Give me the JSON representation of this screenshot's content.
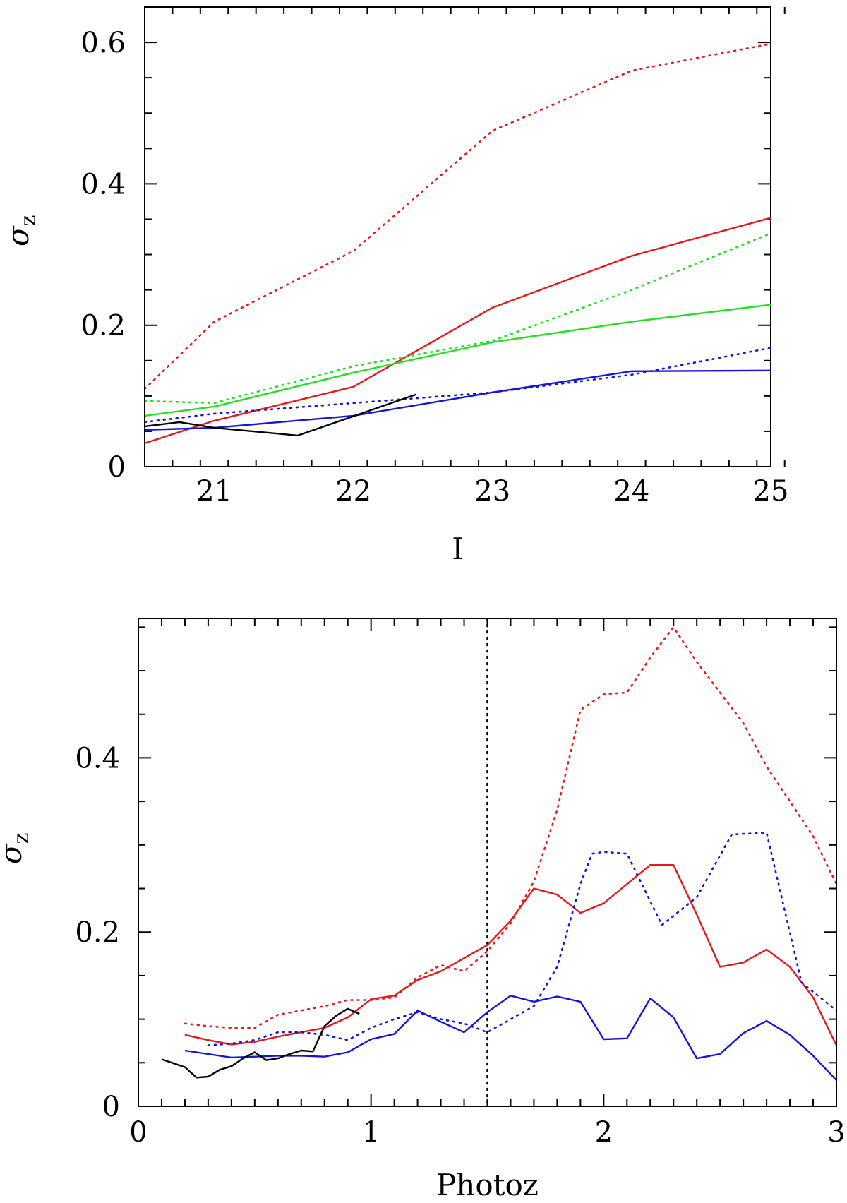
{
  "colors": {
    "red": "#e41a1c",
    "green": "#22e022",
    "blue": "#1515d8",
    "black": "#000000"
  },
  "chart_data": [
    {
      "type": "line",
      "title": "",
      "xlabel": "I",
      "ylabel": "σ",
      "ylabel_subscript": "z",
      "xlim": [
        20.5,
        25
      ],
      "ylim": [
        0,
        0.65
      ],
      "xticks": [
        21,
        22,
        23,
        24,
        25
      ],
      "xtick_labels": [
        "21",
        "22",
        "23",
        "24",
        "25"
      ],
      "xminor_step": 0.2,
      "yticks": [
        0,
        0.2,
        0.4,
        0.6
      ],
      "ytick_labels": [
        "0",
        "0.2",
        "0.4",
        "0.6"
      ],
      "yminor_step": 0.05,
      "series": [
        {
          "color": "red",
          "style": "dotted",
          "x": [
            20.5,
            21,
            22,
            23,
            24,
            25
          ],
          "y": [
            0.11,
            0.205,
            0.305,
            0.475,
            0.56,
            0.598
          ]
        },
        {
          "color": "red",
          "style": "solid",
          "x": [
            20.5,
            21,
            22,
            23,
            24,
            25
          ],
          "y": [
            0.033,
            0.065,
            0.113,
            0.225,
            0.298,
            0.352
          ]
        },
        {
          "color": "green",
          "style": "dotted",
          "x": [
            20.5,
            21,
            22,
            23,
            24,
            25
          ],
          "y": [
            0.093,
            0.09,
            0.142,
            0.178,
            0.25,
            0.33
          ]
        },
        {
          "color": "green",
          "style": "solid",
          "x": [
            20.5,
            21,
            22,
            23,
            24,
            25
          ],
          "y": [
            0.072,
            0.085,
            0.133,
            0.176,
            0.205,
            0.229
          ]
        },
        {
          "color": "blue",
          "style": "dotted",
          "x": [
            20.5,
            21,
            22,
            23,
            24,
            25
          ],
          "y": [
            0.063,
            0.075,
            0.09,
            0.105,
            0.13,
            0.168
          ]
        },
        {
          "color": "blue",
          "style": "solid",
          "x": [
            20.5,
            21,
            22,
            23,
            24,
            25
          ],
          "y": [
            0.052,
            0.055,
            0.072,
            0.105,
            0.135,
            0.136
          ]
        },
        {
          "color": "black",
          "style": "solid",
          "x": [
            20.5,
            20.75,
            21.0,
            21.6,
            22.45
          ],
          "y": [
            0.057,
            0.063,
            0.055,
            0.044,
            0.102
          ]
        }
      ]
    },
    {
      "type": "line",
      "title": "",
      "xlabel": "Photoz",
      "ylabel": "σ",
      "ylabel_subscript": "z",
      "xlim": [
        0,
        3
      ],
      "ylim": [
        0,
        0.56
      ],
      "xticks": [
        0,
        1,
        2,
        3
      ],
      "xtick_labels": [
        "0",
        "1",
        "2",
        "3"
      ],
      "xminor_step": 0.1,
      "yticks": [
        0,
        0.2,
        0.4
      ],
      "ytick_labels": [
        "0",
        "0.2",
        "0.4"
      ],
      "yminor_step": 0.05,
      "vline_x": 1.5,
      "series": [
        {
          "color": "red",
          "style": "dotted",
          "x": [
            0.2,
            0.3,
            0.4,
            0.5,
            0.6,
            0.7,
            0.8,
            0.9,
            1.0,
            1.1,
            1.2,
            1.3,
            1.4,
            1.5,
            1.6,
            1.7,
            1.8,
            1.9,
            2.0,
            2.1,
            2.2,
            2.3,
            2.4,
            2.5,
            2.6,
            2.7,
            2.8,
            2.9,
            3.0
          ],
          "y": [
            0.095,
            0.092,
            0.09,
            0.09,
            0.105,
            0.11,
            0.115,
            0.122,
            0.122,
            0.125,
            0.148,
            0.162,
            0.155,
            0.178,
            0.21,
            0.258,
            0.34,
            0.455,
            0.473,
            0.475,
            0.515,
            0.55,
            0.51,
            0.475,
            0.44,
            0.39,
            0.35,
            0.31,
            0.255
          ]
        },
        {
          "color": "red",
          "style": "solid",
          "x": [
            0.2,
            0.3,
            0.4,
            0.5,
            0.6,
            0.7,
            0.8,
            0.9,
            1.0,
            1.1,
            1.2,
            1.3,
            1.4,
            1.5,
            1.6,
            1.7,
            1.8,
            1.9,
            2.0,
            2.1,
            2.2,
            2.3,
            2.4,
            2.5,
            2.6,
            2.7,
            2.8,
            2.9,
            3.0
          ],
          "y": [
            0.082,
            0.076,
            0.071,
            0.074,
            0.08,
            0.085,
            0.09,
            0.102,
            0.123,
            0.127,
            0.145,
            0.155,
            0.17,
            0.185,
            0.213,
            0.25,
            0.243,
            0.222,
            0.233,
            0.255,
            0.277,
            0.277,
            0.22,
            0.16,
            0.165,
            0.18,
            0.16,
            0.125,
            0.07
          ]
        },
        {
          "color": "blue",
          "style": "dotted",
          "x": [
            0.3,
            0.4,
            0.5,
            0.6,
            0.7,
            0.8,
            0.9,
            1.0,
            1.1,
            1.2,
            1.3,
            1.4,
            1.5,
            1.6,
            1.7,
            1.8,
            1.9,
            1.95,
            2.0,
            2.1,
            2.25,
            2.4,
            2.55,
            2.7,
            2.85,
            3.0
          ],
          "y": [
            0.07,
            0.072,
            0.076,
            0.085,
            0.085,
            0.082,
            0.076,
            0.09,
            0.1,
            0.108,
            0.1,
            0.095,
            0.085,
            0.1,
            0.115,
            0.16,
            0.255,
            0.29,
            0.292,
            0.29,
            0.208,
            0.24,
            0.312,
            0.314,
            0.142,
            0.11
          ]
        },
        {
          "color": "blue",
          "style": "solid",
          "x": [
            0.2,
            0.3,
            0.4,
            0.5,
            0.6,
            0.7,
            0.8,
            0.9,
            1.0,
            1.1,
            1.2,
            1.3,
            1.4,
            1.5,
            1.6,
            1.7,
            1.8,
            1.9,
            2.0,
            2.1,
            2.2,
            2.3,
            2.4,
            2.5,
            2.6,
            2.7,
            2.8,
            2.9,
            3.0
          ],
          "y": [
            0.064,
            0.06,
            0.056,
            0.057,
            0.058,
            0.058,
            0.057,
            0.062,
            0.077,
            0.083,
            0.11,
            0.097,
            0.085,
            0.108,
            0.127,
            0.12,
            0.126,
            0.12,
            0.077,
            0.078,
            0.124,
            0.102,
            0.055,
            0.06,
            0.084,
            0.098,
            0.082,
            0.058,
            0.03
          ]
        },
        {
          "color": "black",
          "style": "solid",
          "x": [
            0.1,
            0.2,
            0.25,
            0.3,
            0.35,
            0.4,
            0.45,
            0.5,
            0.55,
            0.6,
            0.65,
            0.7,
            0.75,
            0.8,
            0.85,
            0.9,
            0.95
          ],
          "y": [
            0.054,
            0.045,
            0.033,
            0.034,
            0.042,
            0.046,
            0.055,
            0.062,
            0.053,
            0.055,
            0.06,
            0.064,
            0.063,
            0.092,
            0.104,
            0.112,
            0.106
          ]
        }
      ]
    }
  ]
}
